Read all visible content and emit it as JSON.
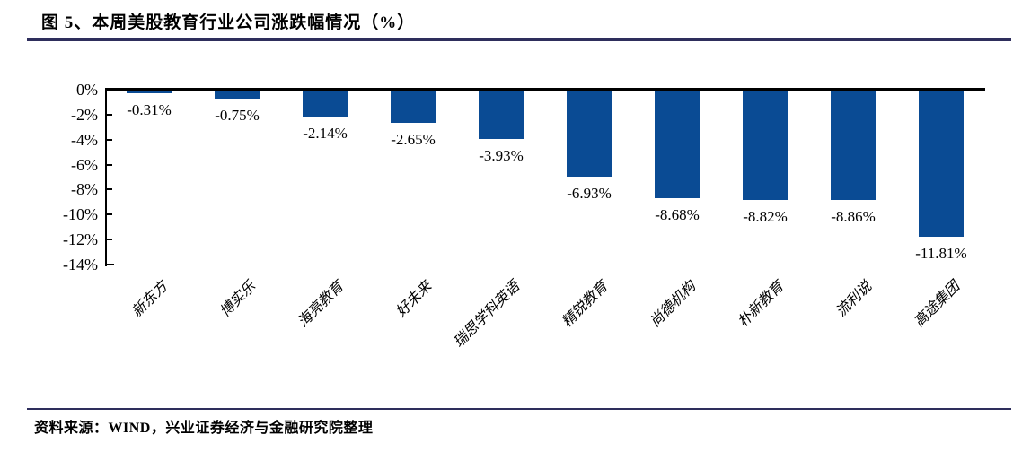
{
  "figure": {
    "title": "图 5、本周美股教育行业公司涨跌幅情况（%）",
    "source": "资料来源：WIND，兴业证券经济与金融研究院整理"
  },
  "colors": {
    "bar": "#0A4B94",
    "rule": "#2E2E5C",
    "axis": "#000000"
  },
  "chart_data": {
    "type": "bar",
    "title": "本周美股教育行业公司涨跌幅情况（%）",
    "categories": [
      "新东方",
      "博实乐",
      "海亮教育",
      "好未来",
      "瑞思学科英语",
      "精锐教育",
      "尚德机构",
      "朴新教育",
      "流利说",
      "高途集团"
    ],
    "values": [
      -0.31,
      -0.75,
      -2.14,
      -2.65,
      -3.93,
      -6.93,
      -8.68,
      -8.82,
      -8.86,
      -11.81
    ],
    "value_labels": [
      "-0.31%",
      "-0.75%",
      "-2.14%",
      "-2.65%",
      "-3.93%",
      "-6.93%",
      "-8.68%",
      "-8.82%",
      "-8.86%",
      "-11.81%"
    ],
    "xlabel": "",
    "ylabel": "",
    "ylim": [
      -14,
      0
    ],
    "ytick_labels": [
      "0%",
      "-2%",
      "-4%",
      "-6%",
      "-8%",
      "-10%",
      "-12%",
      "-14%"
    ],
    "grid": false,
    "legend": false,
    "bar_color": "#0A4B94",
    "data_label_position": "below-bar-end"
  }
}
